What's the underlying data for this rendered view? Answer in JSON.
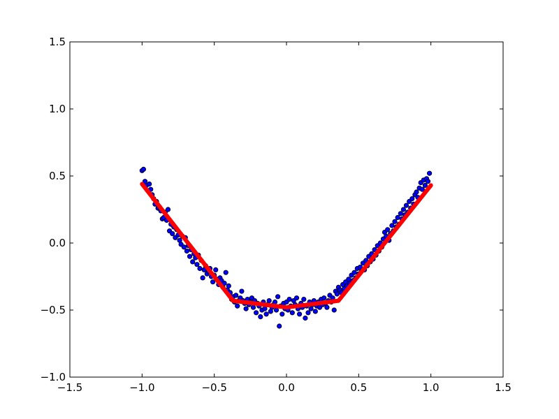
{
  "chart_data": {
    "type": "scatter",
    "title": "",
    "xlabel": "",
    "ylabel": "",
    "xlim": [
      -1.5,
      1.5
    ],
    "ylim": [
      -1.0,
      1.5
    ],
    "xticks": [
      -1.5,
      -1.0,
      -0.5,
      0.0,
      0.5,
      1.0,
      1.5
    ],
    "yticks": [
      -1.0,
      -0.5,
      0.0,
      0.5,
      1.0,
      1.5
    ],
    "xtick_labels": [
      "−1.5",
      "−1.0",
      "−0.5",
      "0.0",
      "0.5",
      "1.0",
      "1.5"
    ],
    "ytick_labels": [
      "−1.0",
      "−0.5",
      "0.0",
      "0.5",
      "1.0",
      "1.5"
    ],
    "grid": false,
    "legend": "none",
    "series": [
      {
        "type": "scatter",
        "color": "#0000ff",
        "edge_color": "#000000",
        "points": [
          [
            -1.0,
            0.54
          ],
          [
            -0.99,
            0.55
          ],
          [
            -0.98,
            0.46
          ],
          [
            -0.97,
            0.43
          ],
          [
            -0.96,
            0.39
          ],
          [
            -0.95,
            0.44
          ],
          [
            -0.94,
            0.4
          ],
          [
            -0.93,
            0.36
          ],
          [
            -0.92,
            0.33
          ],
          [
            -0.91,
            0.29
          ],
          [
            -0.9,
            0.31
          ],
          [
            -0.89,
            0.26
          ],
          [
            -0.88,
            0.27
          ],
          [
            -0.87,
            0.24
          ],
          [
            -0.86,
            0.18
          ],
          [
            -0.85,
            0.19
          ],
          [
            -0.84,
            0.23
          ],
          [
            -0.83,
            0.17
          ],
          [
            -0.82,
            0.25
          ],
          [
            -0.81,
            0.09
          ],
          [
            -0.8,
            0.14
          ],
          [
            -0.79,
            0.07
          ],
          [
            -0.78,
            0.12
          ],
          [
            -0.77,
            0.04
          ],
          [
            -0.76,
            0.1
          ],
          [
            -0.75,
            0.06
          ],
          [
            -0.74,
            0.02
          ],
          [
            -0.73,
            -0.01
          ],
          [
            -0.72,
            0.05
          ],
          [
            -0.71,
            -0.03
          ],
          [
            -0.7,
            0.04
          ],
          [
            -0.69,
            -0.06
          ],
          [
            -0.68,
            -0.02
          ],
          [
            -0.67,
            -0.1
          ],
          [
            -0.66,
            -0.05
          ],
          [
            -0.65,
            -0.14
          ],
          [
            -0.64,
            -0.08
          ],
          [
            -0.63,
            -0.11
          ],
          [
            -0.62,
            -0.16
          ],
          [
            -0.61,
            -0.09
          ],
          [
            -0.6,
            -0.19
          ],
          [
            -0.59,
            -0.13
          ],
          [
            -0.58,
            -0.26
          ],
          [
            -0.57,
            -0.2
          ],
          [
            -0.56,
            -0.17
          ],
          [
            -0.55,
            -0.23
          ],
          [
            -0.54,
            -0.21
          ],
          [
            -0.53,
            -0.19
          ],
          [
            -0.52,
            -0.25
          ],
          [
            -0.51,
            -0.29
          ],
          [
            -0.5,
            -0.24
          ],
          [
            -0.49,
            -0.2
          ],
          [
            -0.48,
            -0.27
          ],
          [
            -0.47,
            -0.31
          ],
          [
            -0.46,
            -0.26
          ],
          [
            -0.45,
            -0.28
          ],
          [
            -0.44,
            -0.33
          ],
          [
            -0.43,
            -0.3
          ],
          [
            -0.42,
            -0.22
          ],
          [
            -0.41,
            -0.35
          ],
          [
            -0.4,
            -0.32
          ],
          [
            -0.39,
            -0.37
          ],
          [
            -0.38,
            -0.42
          ],
          [
            -0.37,
            -0.4
          ],
          [
            -0.36,
            -0.44
          ],
          [
            -0.35,
            -0.39
          ],
          [
            -0.34,
            -0.47
          ],
          [
            -0.33,
            -0.43
          ],
          [
            -0.32,
            -0.41
          ],
          [
            -0.31,
            -0.36
          ],
          [
            -0.3,
            -0.43
          ],
          [
            -0.29,
            -0.45
          ],
          [
            -0.28,
            -0.49
          ],
          [
            -0.27,
            -0.42
          ],
          [
            -0.26,
            -0.46
          ],
          [
            -0.25,
            -0.44
          ],
          [
            -0.24,
            -0.41
          ],
          [
            -0.23,
            -0.48
          ],
          [
            -0.22,
            -0.43
          ],
          [
            -0.21,
            -0.52
          ],
          [
            -0.2,
            -0.45
          ],
          [
            -0.19,
            -0.47
          ],
          [
            -0.18,
            -0.55
          ],
          [
            -0.17,
            -0.5
          ],
          [
            -0.16,
            -0.44
          ],
          [
            -0.15,
            -0.49
          ],
          [
            -0.14,
            -0.53
          ],
          [
            -0.13,
            -0.46
          ],
          [
            -0.12,
            -0.43
          ],
          [
            -0.11,
            -0.51
          ],
          [
            -0.1,
            -0.48
          ],
          [
            -0.09,
            -0.46
          ],
          [
            -0.08,
            -0.44
          ],
          [
            -0.07,
            -0.5
          ],
          [
            -0.06,
            -0.4
          ],
          [
            -0.05,
            -0.62
          ],
          [
            -0.04,
            -0.47
          ],
          [
            -0.03,
            -0.53
          ],
          [
            -0.02,
            -0.45
          ],
          [
            -0.01,
            -0.49
          ],
          [
            0.0,
            -0.44
          ],
          [
            0.01,
            -0.5
          ],
          [
            0.02,
            -0.42
          ],
          [
            0.03,
            -0.47
          ],
          [
            0.04,
            -0.52
          ],
          [
            0.05,
            -0.43
          ],
          [
            0.06,
            -0.46
          ],
          [
            0.07,
            -0.41
          ],
          [
            0.08,
            -0.49
          ],
          [
            0.09,
            -0.53
          ],
          [
            0.1,
            -0.45
          ],
          [
            0.11,
            -0.48
          ],
          [
            0.12,
            -0.42
          ],
          [
            0.13,
            -0.56
          ],
          [
            0.14,
            -0.47
          ],
          [
            0.15,
            -0.52
          ],
          [
            0.16,
            -0.44
          ],
          [
            0.17,
            -0.49
          ],
          [
            0.18,
            -0.46
          ],
          [
            0.19,
            -0.43
          ],
          [
            0.2,
            -0.51
          ],
          [
            0.21,
            -0.47
          ],
          [
            0.22,
            -0.44
          ],
          [
            0.23,
            -0.48
          ],
          [
            0.24,
            -0.42
          ],
          [
            0.25,
            -0.46
          ],
          [
            0.26,
            -0.41
          ],
          [
            0.27,
            -0.45
          ],
          [
            0.28,
            -0.48
          ],
          [
            0.29,
            -0.43
          ],
          [
            0.3,
            -0.39
          ],
          [
            0.31,
            -0.44
          ],
          [
            0.32,
            -0.41
          ],
          [
            0.33,
            -0.5
          ],
          [
            0.34,
            -0.36
          ],
          [
            0.35,
            -0.38
          ],
          [
            0.36,
            -0.33
          ],
          [
            0.37,
            -0.35
          ],
          [
            0.38,
            -0.37
          ],
          [
            0.39,
            -0.31
          ],
          [
            0.4,
            -0.34
          ],
          [
            0.41,
            -0.29
          ],
          [
            0.42,
            -0.32
          ],
          [
            0.43,
            -0.27
          ],
          [
            0.44,
            -0.3
          ],
          [
            0.45,
            -0.24
          ],
          [
            0.46,
            -0.28
          ],
          [
            0.47,
            -0.22
          ],
          [
            0.48,
            -0.26
          ],
          [
            0.49,
            -0.19
          ],
          [
            0.5,
            -0.23
          ],
          [
            0.51,
            -0.18
          ],
          [
            0.52,
            -0.21
          ],
          [
            0.53,
            -0.15
          ],
          [
            0.54,
            -0.2
          ],
          [
            0.55,
            -0.13
          ],
          [
            0.56,
            -0.17
          ],
          [
            0.57,
            -0.1
          ],
          [
            0.58,
            -0.14
          ],
          [
            0.59,
            -0.08
          ],
          [
            0.6,
            -0.12
          ],
          [
            0.61,
            -0.05
          ],
          [
            0.62,
            -0.09
          ],
          [
            0.63,
            -0.02
          ],
          [
            0.64,
            -0.06
          ],
          [
            0.65,
            0.0
          ],
          [
            0.66,
            -0.03
          ],
          [
            0.67,
            0.03
          ],
          [
            0.68,
            0.08
          ],
          [
            0.69,
            0.05
          ],
          [
            0.7,
            0.1
          ],
          [
            0.71,
            0.02
          ],
          [
            0.72,
            0.07
          ],
          [
            0.73,
            0.13
          ],
          [
            0.74,
            0.09
          ],
          [
            0.75,
            0.16
          ],
          [
            0.76,
            0.12
          ],
          [
            0.77,
            0.19
          ],
          [
            0.78,
            0.14
          ],
          [
            0.79,
            0.22
          ],
          [
            0.8,
            0.18
          ],
          [
            0.81,
            0.25
          ],
          [
            0.82,
            0.21
          ],
          [
            0.83,
            0.28
          ],
          [
            0.84,
            0.23
          ],
          [
            0.85,
            0.31
          ],
          [
            0.86,
            0.26
          ],
          [
            0.87,
            0.33
          ],
          [
            0.88,
            0.29
          ],
          [
            0.89,
            0.36
          ],
          [
            0.9,
            0.38
          ],
          [
            0.91,
            0.34
          ],
          [
            0.92,
            0.41
          ],
          [
            0.93,
            0.45
          ],
          [
            0.94,
            0.4
          ],
          [
            0.95,
            0.47
          ],
          [
            0.96,
            0.43
          ],
          [
            0.97,
            0.48
          ],
          [
            0.98,
            0.46
          ],
          [
            0.99,
            0.52
          ]
        ]
      },
      {
        "type": "line",
        "color": "#ff0000",
        "points": [
          [
            -1.0,
            0.44
          ],
          [
            -0.37,
            -0.43
          ],
          [
            0.0,
            -0.48
          ],
          [
            0.36,
            -0.43
          ],
          [
            1.0,
            0.43
          ]
        ]
      }
    ]
  }
}
